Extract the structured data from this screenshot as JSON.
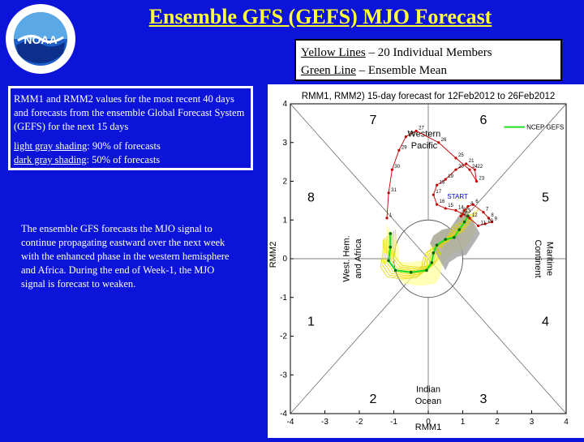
{
  "title": "Ensemble GFS (GEFS) MJO Forecast",
  "logo": {
    "text": "NOAA",
    "ring_text": "NATIONAL OCEANIC AND ATMOSPHERIC ADMINISTRATION · U.S. DEPARTMENT OF COMMERCE"
  },
  "legend": {
    "line1_label": "Yellow Lines",
    "line1_text": " – 20 Individual Members",
    "line2_label": "Green Line",
    "line2_text": " – Ensemble Mean"
  },
  "info": {
    "para1": "RMM1 and RMM2 values for the most recent 40 days and forecasts from the ensemble Global Forecast System (GEFS) for the next 15 days",
    "light_label": "light gray shading",
    "light_text": ": 90% of forecasts",
    "dark_label": "dark gray shading",
    "dark_text": ": 50% of forecasts"
  },
  "description": "The ensemble GFS forecasts the MJO signal to continue propagating eastward over the next week with the enhanced phase in the western hemisphere and Africa. During the end of Week-1, the MJO signal is forecast to weaken.",
  "chart_data": {
    "type": "scatter",
    "title": "RMM1, RMM2) 15-day forecast for 12Feb2012 to 26Feb2012",
    "xlabel": "RMM1",
    "ylabel": "RMM2",
    "xlim": [
      -4,
      4
    ],
    "ylim": [
      -4,
      4
    ],
    "ticks": [
      "-4",
      "-3",
      "-2",
      "-1",
      "0",
      "1",
      "2",
      "3",
      "4"
    ],
    "phases": [
      {
        "label": "1",
        "x": -3.4,
        "y": -1.6
      },
      {
        "label": "2",
        "x": -1.6,
        "y": -3.6
      },
      {
        "label": "3",
        "x": 1.6,
        "y": -3.6
      },
      {
        "label": "4",
        "x": 3.4,
        "y": -1.6
      },
      {
        "label": "5",
        "x": 3.4,
        "y": 1.6
      },
      {
        "label": "6",
        "x": 1.6,
        "y": 3.6
      },
      {
        "label": "7",
        "x": -1.6,
        "y": 3.6
      },
      {
        "label": "8",
        "x": -3.4,
        "y": 1.6
      }
    ],
    "regions": [
      "Western Pacific",
      "West. Hem. and Africa",
      "Maritime Continent",
      "Indian Ocean"
    ],
    "start_label": "START",
    "legend_entry": "NCEP GEFS",
    "observed_labels": [
      "1",
      "2",
      "4",
      "6",
      "7",
      "8",
      "9",
      "10",
      "11",
      "12",
      "13",
      "14",
      "15",
      "16",
      "17",
      "18",
      "19",
      "20",
      "21",
      "22",
      "23",
      "24",
      "25",
      "26",
      "27",
      "28",
      "29",
      "30",
      "31",
      "1"
    ],
    "observed": [
      {
        "x": 0.95,
        "y": 1.1
      },
      {
        "x": 1.05,
        "y": 1.25
      },
      {
        "x": 1.15,
        "y": 1.35
      },
      {
        "x": 1.3,
        "y": 1.4
      },
      {
        "x": 1.6,
        "y": 1.2
      },
      {
        "x": 1.75,
        "y": 1.05
      },
      {
        "x": 1.85,
        "y": 0.95
      },
      {
        "x": 1.65,
        "y": 0.9
      },
      {
        "x": 1.45,
        "y": 0.85
      },
      {
        "x": 1.2,
        "y": 1.05
      },
      {
        "x": 1.0,
        "y": 1.15
      },
      {
        "x": 0.8,
        "y": 1.25
      },
      {
        "x": 0.5,
        "y": 1.3
      },
      {
        "x": 0.25,
        "y": 1.4
      },
      {
        "x": 0.15,
        "y": 1.65
      },
      {
        "x": 0.25,
        "y": 1.9
      },
      {
        "x": 0.5,
        "y": 2.05
      },
      {
        "x": 0.8,
        "y": 2.3
      },
      {
        "x": 1.1,
        "y": 2.45
      },
      {
        "x": 1.35,
        "y": 2.3
      },
      {
        "x": 1.4,
        "y": 2.0
      },
      {
        "x": 1.2,
        "y": 2.3
      },
      {
        "x": 0.8,
        "y": 2.6
      },
      {
        "x": 0.3,
        "y": 3.0
      },
      {
        "x": -0.35,
        "y": 3.3
      },
      {
        "x": -0.65,
        "y": 3.15
      },
      {
        "x": -0.85,
        "y": 2.8
      },
      {
        "x": -1.05,
        "y": 2.3
      },
      {
        "x": -1.15,
        "y": 1.7
      },
      {
        "x": -1.2,
        "y": 1.05
      }
    ],
    "ensemble_mean": [
      {
        "x": -1.1,
        "y": 0.65
      },
      {
        "x": -1.1,
        "y": 0.3
      },
      {
        "x": -1.15,
        "y": -0.05
      },
      {
        "x": -0.95,
        "y": -0.3
      },
      {
        "x": -0.5,
        "y": -0.35
      },
      {
        "x": -0.05,
        "y": -0.3
      },
      {
        "x": 0.1,
        "y": -0.1
      },
      {
        "x": 0.15,
        "y": 0.15
      },
      {
        "x": 0.25,
        "y": 0.35
      },
      {
        "x": 0.5,
        "y": 0.5
      },
      {
        "x": 0.75,
        "y": 0.55
      },
      {
        "x": 0.9,
        "y": 0.75
      },
      {
        "x": 1.05,
        "y": 0.95
      },
      {
        "x": 1.15,
        "y": 1.1
      }
    ]
  }
}
